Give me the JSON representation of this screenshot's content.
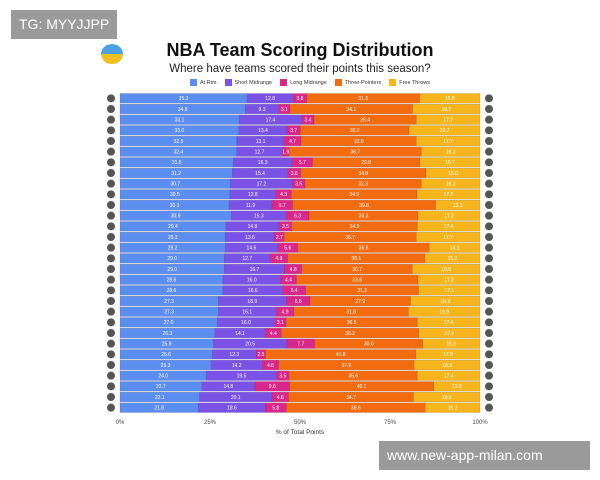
{
  "watermarks": {
    "top_left": "TG: MYYJJPP",
    "bottom_right": "www.new-app-milan.com"
  },
  "chart_data": {
    "type": "bar",
    "orientation": "horizontal-stacked",
    "title": "NBA Team Scoring Distribution",
    "subtitle": "Where have teams scored their points this season?",
    "xlabel": "% of Total Points",
    "xlim": [
      0,
      100
    ],
    "xticks": [
      "0%",
      "25%",
      "50%",
      "75%",
      "100%"
    ],
    "legend_position": "top",
    "grid": false,
    "series": [
      {
        "name": "At Rim",
        "color": "#5b8ef0",
        "values": [
          35.3,
          34.8,
          33.1,
          33.0,
          32.5,
          32.4,
          31.5,
          31.2,
          30.7,
          30.5,
          30.3,
          30.9,
          29.4,
          29.3,
          29.2,
          29.0,
          29.0,
          28.6,
          28.6,
          27.3,
          27.3,
          27.0,
          26.3,
          25.9,
          25.6,
          25.3,
          24.0,
          22.7,
          22.1,
          21.8
        ]
      },
      {
        "name": "Short Midrange",
        "color": "#7a52e6",
        "values": [
          12.8,
          9.3,
          17.4,
          13.4,
          13.1,
          12.7,
          16.3,
          15.4,
          17.2,
          12.8,
          11.9,
          15.3,
          14.8,
          13.6,
          14.6,
          12.7,
          16.7,
          16.0,
          16.6,
          18.9,
          16.1,
          16.0,
          14.1,
          20.5,
          12.3,
          14.2,
          19.5,
          14.8,
          20.1,
          18.6
        ]
      },
      {
        "name": "Long Midrange",
        "color": "#d9288a",
        "values": [
          3.8,
          3.1,
          3.4,
          3.7,
          4.7,
          1.9,
          5.7,
          3.6,
          3.5,
          4.3,
          5.7,
          6.3,
          3.5,
          2.7,
          5.6,
          4.9,
          4.8,
          4.4,
          6.4,
          6.6,
          4.9,
          3.1,
          4.4,
          7.7,
          2.5,
          4.6,
          3.5,
          9.6,
          4.6,
          5.8
        ]
      },
      {
        "name": "Three-Pointers",
        "color": "#f26b0f",
        "values": [
          31.3,
          34.1,
          28.4,
          30.2,
          32.0,
          36.7,
          29.8,
          34.8,
          32.3,
          34.9,
          39.8,
          30.3,
          34.9,
          36.7,
          36.5,
          38.1,
          30.7,
          33.8,
          31.3,
          27.9,
          31.8,
          36.5,
          38.2,
          30.0,
          41.8,
          37.6,
          35.6,
          40.1,
          34.7,
          38.6
        ]
      },
      {
        "name": "Free Throws",
        "color": "#f5b51b",
        "values": [
          16.8,
          18.7,
          17.7,
          19.7,
          17.7,
          16.3,
          16.7,
          15.0,
          16.3,
          17.5,
          12.3,
          17.2,
          17.4,
          17.7,
          14.1,
          15.3,
          18.8,
          17.2,
          17.1,
          19.3,
          19.9,
          17.4,
          17.0,
          15.9,
          17.8,
          18.3,
          17.4,
          12.8,
          18.5,
          15.2
        ]
      }
    ]
  }
}
